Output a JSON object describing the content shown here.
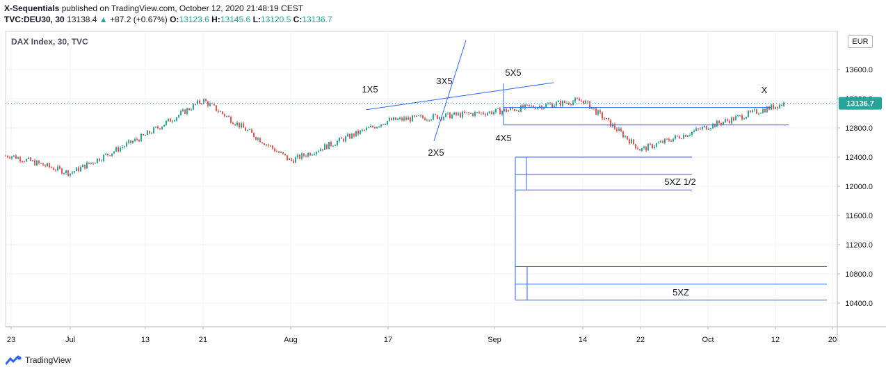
{
  "header": {
    "author": "X-Sequentials",
    "published": " published on TradingView.com, October 12, 2020 21:48:19 CEST",
    "symbol": "TVC:DEU30, 30",
    "last": "13138.4",
    "change": "+87.2 (+0.67%)",
    "o_label": "O:",
    "o_value": "13123.6",
    "h_label": "H:",
    "h_value": "13145.6",
    "l_label": "L:",
    "l_value": "13120.5",
    "c_label": "C:",
    "c_value": "13136.7"
  },
  "pane_title": "DAX Index, 30, TVC",
  "currency": "EUR",
  "footer": {
    "brand": "TradingView"
  },
  "colors": {
    "up": "#26a69a",
    "down": "#ef5350",
    "line": "#2962ff",
    "priceTag": "#26a69a",
    "grid": "#f0f3fa"
  },
  "chart_data": {
    "type": "candlestick",
    "symbol": "TVC:DEU30",
    "interval": "30",
    "ylim": [
      10000,
      14000
    ],
    "y_ticks": [
      10400,
      10800,
      11200,
      11600,
      12000,
      12400,
      12800,
      13200,
      13600
    ],
    "y_tick_labels": [
      "10400.0",
      "10800.0",
      "11200.0",
      "11600.0",
      "12000.0",
      "12400.0",
      "12800.0",
      "13200.0",
      "13600.0"
    ],
    "top_tick_label": "1",
    "x_ticks": [
      "23",
      "Jul",
      "13",
      "21",
      "Aug",
      "17",
      "Sep",
      "14",
      "22",
      "Oct",
      "12",
      "20"
    ],
    "current_price": 13136.7,
    "current_price_label": "13136.7",
    "price_path": [
      [
        "23",
        12420
      ],
      [
        "Jul",
        12180
      ],
      [
        "13",
        12700
      ],
      [
        "21",
        13180
      ],
      [
        "Aug",
        12350
      ],
      [
        "17",
        12900
      ],
      [
        "Sep",
        13020
      ],
      [
        "14",
        13180
      ],
      [
        "22",
        12500
      ],
      [
        "Oct",
        12820
      ],
      [
        "12",
        13137
      ]
    ],
    "annotations": [
      {
        "text": "1X5",
        "date": "17",
        "price": 13270
      },
      {
        "text": "3X5",
        "date": "17",
        "price": 13410
      },
      {
        "text": "5X5",
        "date": "Sep",
        "price": 13520
      },
      {
        "text": "2X5",
        "date": "17",
        "price": 12460
      },
      {
        "text": "4X5",
        "date": "Sep",
        "price": 12630
      },
      {
        "text": "X",
        "date": "12",
        "price": 13280
      },
      {
        "text": "5XZ 1/2",
        "date": "22",
        "price": 12050
      },
      {
        "text": "5XZ",
        "date": "22",
        "price": 10530
      }
    ],
    "levels": [
      {
        "from": "Sep",
        "to": "Oct",
        "price": 12400
      },
      {
        "from": "Sep",
        "to": "Oct",
        "price": 12160
      },
      {
        "from": "Sep",
        "to": "Oct",
        "price": 11950
      },
      {
        "from": "Sep",
        "to": "20",
        "price": 10900
      },
      {
        "from": "Sep",
        "to": "20",
        "price": 10660
      },
      {
        "from": "Sep",
        "to": "20",
        "price": 10440
      },
      {
        "from": "Sep",
        "to": "12",
        "price": 13080
      },
      {
        "from": "Sep",
        "to": "12",
        "price": 12840
      }
    ]
  }
}
